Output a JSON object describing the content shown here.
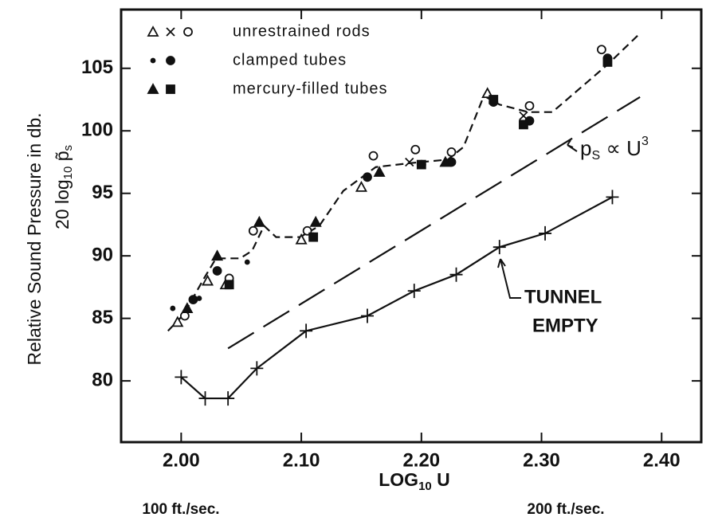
{
  "chart_data": {
    "type": "scatter",
    "ylabel": {
      "line1": "Relative Sound Pressure in db.",
      "line2": [
        "20 log",
        "10",
        " p̃",
        "s"
      ]
    },
    "xlabel": [
      "LOG",
      "10",
      " U"
    ],
    "speed_notes": [
      "100 ft./sec.",
      "200 ft./sec."
    ],
    "annotations": {
      "cube_law": [
        "p",
        "S",
        " ∝ U",
        "3"
      ],
      "tunnel": [
        "TUNNEL",
        "EMPTY"
      ]
    },
    "xlim": [
      1.95,
      2.433
    ],
    "ylim": [
      75.1,
      109.7
    ],
    "xticks": [
      {
        "value": 2.0,
        "label": "2.00"
      },
      {
        "value": 2.1,
        "label": "2.10"
      },
      {
        "value": 2.2,
        "label": "2.20"
      },
      {
        "value": 2.3,
        "label": "2.30"
      },
      {
        "value": 2.4,
        "label": "2.40"
      }
    ],
    "yticks": [
      80,
      85,
      90,
      95,
      100,
      105
    ],
    "grid": false,
    "legend": "upper-left",
    "color": "#111111",
    "series": [
      {
        "name": "unrestrained rods",
        "legend_markers": [
          "triangle",
          "x",
          "circle"
        ],
        "x": [
          1.997,
          2.003,
          2.022,
          2.037,
          2.04,
          2.06,
          2.1,
          2.105,
          2.15,
          2.16,
          2.19,
          2.195,
          2.225,
          2.255,
          2.285,
          2.29,
          2.35
        ],
        "y": [
          84.7,
          85.2,
          88,
          87.7,
          88.2,
          92,
          91.3,
          92,
          95.5,
          98,
          97.5,
          98.5,
          98.3,
          103,
          101.2,
          102,
          106.5
        ],
        "markers": [
          "triangle",
          "circle",
          "triangle",
          "triangle",
          "circle",
          "circle",
          "triangle",
          "circle",
          "triangle",
          "circle",
          "x",
          "circle",
          "circle",
          "triangle",
          "x",
          "circle",
          "circle"
        ]
      },
      {
        "name": "clamped tubes",
        "legend_markers": [
          "dot",
          "half"
        ],
        "x": [
          1.993,
          2.01,
          2.015,
          2.03,
          2.055,
          2.11,
          2.155,
          2.2,
          2.225,
          2.26,
          2.29,
          2.355
        ],
        "y": [
          85.8,
          86.5,
          86.6,
          88.8,
          89.5,
          91.5,
          96.3,
          97.3,
          97.5,
          102.3,
          100.8,
          105.8
        ],
        "markers": [
          "dot",
          "half",
          "dot",
          "half",
          "dot",
          "half",
          "half",
          "half",
          "half",
          "half",
          "half",
          "half"
        ]
      },
      {
        "name": "mercury-filled tubes",
        "legend_markers": [
          "triangle-filled",
          "square"
        ],
        "x": [
          2.005,
          2.03,
          2.04,
          2.065,
          2.112,
          2.11,
          2.165,
          2.2,
          2.22,
          2.26,
          2.285,
          2.355
        ],
        "y": [
          85.8,
          90,
          87.7,
          92.7,
          92.7,
          91.5,
          96.7,
          97.3,
          97.5,
          102.5,
          100.5,
          105.5
        ],
        "markers": [
          "triangle-filled",
          "triangle-filled",
          "square",
          "triangle-filled",
          "triangle-filled",
          "square",
          "triangle-filled",
          "square",
          "triangle-filled",
          "square",
          "square",
          "square"
        ]
      }
    ],
    "curves": [
      {
        "style": "dashed",
        "x": [
          1.989,
          2.002,
          2.019,
          2.029,
          2.049,
          2.059,
          2.069,
          2.079,
          2.099,
          2.115,
          2.135,
          2.162,
          2.189,
          2.222,
          2.235,
          2.252,
          2.265,
          2.289,
          2.309,
          2.355,
          2.382
        ],
        "y": [
          84.0,
          85.3,
          88.2,
          89.8,
          89.8,
          90.4,
          92.4,
          91.5,
          91.5,
          92.4,
          95.2,
          97.1,
          97.4,
          97.7,
          98.7,
          102.8,
          102.1,
          101.5,
          101.5,
          105.3,
          107.8
        ]
      },
      {
        "style": "long-dash",
        "x": [
          2.039,
          2.382
        ],
        "y": [
          82.6,
          102.7
        ]
      },
      {
        "style": "solid",
        "point_marker": "cross",
        "x": [
          2.0,
          2.02,
          2.039,
          2.063,
          2.104,
          2.155,
          2.194,
          2.229,
          2.265,
          2.303,
          2.359
        ],
        "y": [
          80.3,
          78.6,
          78.6,
          81,
          84,
          85.2,
          87.2,
          88.5,
          90.7,
          91.8,
          94.7
        ]
      }
    ]
  }
}
